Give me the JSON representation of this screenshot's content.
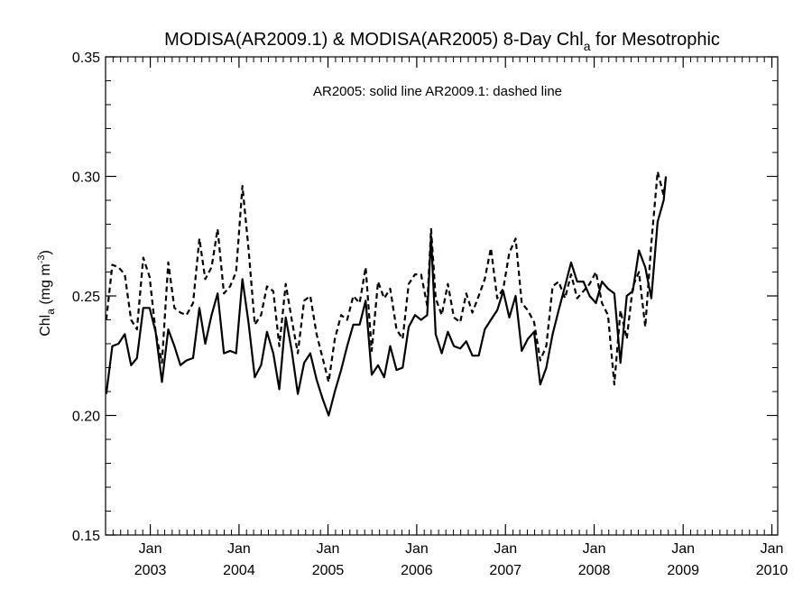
{
  "chart_data": {
    "type": "line",
    "title_main": "MODISA(AR2009.1) & MODISA(AR2005) 8-Day Chl",
    "title_sub": "a",
    "title_tail": " for Mesotrophic",
    "ylabel_main": "Chl",
    "ylabel_sub": "a",
    "ylabel_unit": " (mg m",
    "ylabel_sup": "-3",
    "ylabel_close": ")",
    "annotation": "AR2005: solid line   AR2009.1: dashed line",
    "ylim": [
      0.15,
      0.35
    ],
    "yticks": [
      0.15,
      0.2,
      0.25,
      0.3,
      0.35
    ],
    "ytick_labels": [
      "0.15",
      "0.20",
      "0.25",
      "0.30",
      "0.35"
    ],
    "xlim": [
      "2002-07-01",
      "2010-01-25"
    ],
    "xticks": [
      {
        "date": "2003-01-01",
        "month": "Jan",
        "year": "2003"
      },
      {
        "date": "2004-01-01",
        "month": "Jan",
        "year": "2004"
      },
      {
        "date": "2005-01-01",
        "month": "Jan",
        "year": "2005"
      },
      {
        "date": "2006-01-01",
        "month": "Jan",
        "year": "2006"
      },
      {
        "date": "2007-01-01",
        "month": "Jan",
        "year": "2007"
      },
      {
        "date": "2008-01-01",
        "month": "Jan",
        "year": "2008"
      },
      {
        "date": "2009-01-01",
        "month": "Jan",
        "year": "2009"
      },
      {
        "date": "2010-01-01",
        "month": "Jan",
        "year": "2010"
      }
    ],
    "grid": false,
    "series": [
      {
        "name": "AR2005",
        "style": "solid",
        "color": "#000000",
        "points": [
          [
            "2002-07-04",
            0.209
          ],
          [
            "2002-07-29",
            0.229
          ],
          [
            "2002-08-23",
            0.23
          ],
          [
            "2002-09-18",
            0.234
          ],
          [
            "2002-10-14",
            0.221
          ],
          [
            "2002-11-07",
            0.224
          ],
          [
            "2002-12-03",
            0.245
          ],
          [
            "2002-12-29",
            0.245
          ],
          [
            "2003-01-23",
            0.235
          ],
          [
            "2003-02-18",
            0.214
          ],
          [
            "2003-03-16",
            0.236
          ],
          [
            "2003-04-10",
            0.229
          ],
          [
            "2003-05-05",
            0.221
          ],
          [
            "2003-05-30",
            0.223
          ],
          [
            "2003-06-26",
            0.224
          ],
          [
            "2003-07-22",
            0.245
          ],
          [
            "2003-08-15",
            0.23
          ],
          [
            "2003-09-10",
            0.242
          ],
          [
            "2003-10-05",
            0.251
          ],
          [
            "2003-10-31",
            0.226
          ],
          [
            "2003-11-25",
            0.227
          ],
          [
            "2003-12-20",
            0.226
          ],
          [
            "2004-01-15",
            0.257
          ],
          [
            "2004-02-09",
            0.239
          ],
          [
            "2004-03-06",
            0.216
          ],
          [
            "2004-04-01",
            0.221
          ],
          [
            "2004-04-25",
            0.235
          ],
          [
            "2004-05-21",
            0.226
          ],
          [
            "2004-06-15",
            0.211
          ],
          [
            "2004-07-11",
            0.241
          ],
          [
            "2004-08-05",
            0.227
          ],
          [
            "2004-08-30",
            0.209
          ],
          [
            "2004-09-25",
            0.222
          ],
          [
            "2004-10-20",
            0.226
          ],
          [
            "2004-11-15",
            0.215
          ],
          [
            "2004-12-10",
            0.207
          ],
          [
            "2005-01-04",
            0.2
          ],
          [
            "2005-01-29",
            0.21
          ],
          [
            "2005-02-24",
            0.219
          ],
          [
            "2005-03-21",
            0.229
          ],
          [
            "2005-04-15",
            0.238
          ],
          [
            "2005-05-11",
            0.238
          ],
          [
            "2005-06-05",
            0.248
          ],
          [
            "2005-06-30",
            0.217
          ],
          [
            "2005-07-26",
            0.221
          ],
          [
            "2005-08-20",
            0.216
          ],
          [
            "2005-09-14",
            0.229
          ],
          [
            "2005-10-10",
            0.219
          ],
          [
            "2005-11-04",
            0.22
          ],
          [
            "2005-11-29",
            0.237
          ],
          [
            "2005-12-25",
            0.242
          ],
          [
            "2006-01-19",
            0.24
          ],
          [
            "2006-02-13",
            0.242
          ],
          [
            "2006-03-01",
            0.275
          ],
          [
            "2006-03-20",
            0.234
          ],
          [
            "2006-04-14",
            0.226
          ],
          [
            "2006-05-09",
            0.235
          ],
          [
            "2006-06-03",
            0.229
          ],
          [
            "2006-06-29",
            0.228
          ],
          [
            "2006-07-24",
            0.231
          ],
          [
            "2006-08-18",
            0.225
          ],
          [
            "2006-09-13",
            0.225
          ],
          [
            "2006-10-08",
            0.236
          ],
          [
            "2006-11-02",
            0.24
          ],
          [
            "2006-11-28",
            0.244
          ],
          [
            "2006-12-23",
            0.252
          ],
          [
            "2007-01-17",
            0.241
          ],
          [
            "2007-02-12",
            0.25
          ],
          [
            "2007-03-09",
            0.227
          ],
          [
            "2007-04-03",
            0.232
          ],
          [
            "2007-04-29",
            0.235
          ],
          [
            "2007-05-24",
            0.213
          ],
          [
            "2007-06-18",
            0.22
          ],
          [
            "2007-07-14",
            0.234
          ],
          [
            "2007-08-08",
            0.244
          ],
          [
            "2007-09-03",
            0.254
          ],
          [
            "2007-09-28",
            0.264
          ],
          [
            "2007-10-23",
            0.256
          ],
          [
            "2007-11-18",
            0.256
          ],
          [
            "2007-12-13",
            0.25
          ],
          [
            "2008-01-08",
            0.247
          ],
          [
            "2008-02-02",
            0.256
          ],
          [
            "2008-02-27",
            0.253
          ],
          [
            "2008-03-24",
            0.251
          ],
          [
            "2008-04-18",
            0.222
          ],
          [
            "2008-05-14",
            0.25
          ],
          [
            "2008-06-08",
            0.252
          ],
          [
            "2008-07-03",
            0.269
          ],
          [
            "2008-07-29",
            0.262
          ],
          [
            "2008-08-23",
            0.249
          ],
          [
            "2008-09-18",
            0.281
          ],
          [
            "2008-10-13",
            0.29
          ],
          [
            "2008-10-22",
            0.3
          ]
        ]
      },
      {
        "name": "AR2009.1",
        "style": "dashed",
        "color": "#000000",
        "points": [
          [
            "2002-07-04",
            0.24
          ],
          [
            "2002-07-29",
            0.263
          ],
          [
            "2002-08-23",
            0.262
          ],
          [
            "2002-09-18",
            0.259
          ],
          [
            "2002-10-14",
            0.24
          ],
          [
            "2002-11-07",
            0.236
          ],
          [
            "2002-12-03",
            0.266
          ],
          [
            "2002-12-29",
            0.258
          ],
          [
            "2003-01-23",
            0.235
          ],
          [
            "2003-02-18",
            0.222
          ],
          [
            "2003-03-16",
            0.264
          ],
          [
            "2003-04-10",
            0.245
          ],
          [
            "2003-05-05",
            0.243
          ],
          [
            "2003-05-30",
            0.242
          ],
          [
            "2003-06-26",
            0.247
          ],
          [
            "2003-07-22",
            0.274
          ],
          [
            "2003-08-15",
            0.257
          ],
          [
            "2003-09-10",
            0.262
          ],
          [
            "2003-10-05",
            0.278
          ],
          [
            "2003-10-31",
            0.251
          ],
          [
            "2003-11-25",
            0.254
          ],
          [
            "2003-12-20",
            0.26
          ],
          [
            "2004-01-15",
            0.296
          ],
          [
            "2004-02-09",
            0.27
          ],
          [
            "2004-03-06",
            0.238
          ],
          [
            "2004-04-01",
            0.242
          ],
          [
            "2004-04-25",
            0.254
          ],
          [
            "2004-05-21",
            0.252
          ],
          [
            "2004-06-15",
            0.229
          ],
          [
            "2004-07-11",
            0.255
          ],
          [
            "2004-08-05",
            0.24
          ],
          [
            "2004-08-30",
            0.226
          ],
          [
            "2004-09-25",
            0.248
          ],
          [
            "2004-10-20",
            0.25
          ],
          [
            "2004-11-15",
            0.234
          ],
          [
            "2004-12-10",
            0.224
          ],
          [
            "2005-01-04",
            0.214
          ],
          [
            "2005-01-29",
            0.232
          ],
          [
            "2005-02-24",
            0.242
          ],
          [
            "2005-03-21",
            0.24
          ],
          [
            "2005-04-15",
            0.25
          ],
          [
            "2005-05-11",
            0.247
          ],
          [
            "2005-06-05",
            0.262
          ],
          [
            "2005-06-30",
            0.227
          ],
          [
            "2005-07-26",
            0.256
          ],
          [
            "2005-08-20",
            0.249
          ],
          [
            "2005-09-14",
            0.253
          ],
          [
            "2005-10-10",
            0.236
          ],
          [
            "2005-11-04",
            0.232
          ],
          [
            "2005-11-29",
            0.255
          ],
          [
            "2005-12-25",
            0.259
          ],
          [
            "2006-01-19",
            0.259
          ],
          [
            "2006-02-13",
            0.246
          ],
          [
            "2006-03-01",
            0.278
          ],
          [
            "2006-03-20",
            0.249
          ],
          [
            "2006-04-14",
            0.242
          ],
          [
            "2006-05-09",
            0.255
          ],
          [
            "2006-06-03",
            0.241
          ],
          [
            "2006-06-29",
            0.239
          ],
          [
            "2006-07-24",
            0.251
          ],
          [
            "2006-08-18",
            0.243
          ],
          [
            "2006-09-13",
            0.25
          ],
          [
            "2006-10-08",
            0.257
          ],
          [
            "2006-11-02",
            0.27
          ],
          [
            "2006-11-28",
            0.249
          ],
          [
            "2006-12-23",
            0.253
          ],
          [
            "2007-01-17",
            0.268
          ],
          [
            "2007-02-12",
            0.274
          ],
          [
            "2007-03-09",
            0.247
          ],
          [
            "2007-04-03",
            0.244
          ],
          [
            "2007-04-29",
            0.239
          ],
          [
            "2007-05-24",
            0.223
          ],
          [
            "2007-06-18",
            0.229
          ],
          [
            "2007-07-14",
            0.254
          ],
          [
            "2007-08-08",
            0.256
          ],
          [
            "2007-09-03",
            0.249
          ],
          [
            "2007-09-28",
            0.259
          ],
          [
            "2007-10-23",
            0.249
          ],
          [
            "2007-11-18",
            0.252
          ],
          [
            "2007-12-13",
            0.255
          ],
          [
            "2008-01-08",
            0.26
          ],
          [
            "2008-02-02",
            0.247
          ],
          [
            "2008-02-27",
            0.242
          ],
          [
            "2008-03-24",
            0.213
          ],
          [
            "2008-04-18",
            0.244
          ],
          [
            "2008-05-14",
            0.232
          ],
          [
            "2008-06-08",
            0.254
          ],
          [
            "2008-07-03",
            0.26
          ],
          [
            "2008-07-29",
            0.237
          ],
          [
            "2008-08-23",
            0.272
          ],
          [
            "2008-09-18",
            0.302
          ],
          [
            "2008-10-13",
            0.292
          ],
          [
            "2008-10-22",
            0.3
          ]
        ]
      }
    ]
  }
}
